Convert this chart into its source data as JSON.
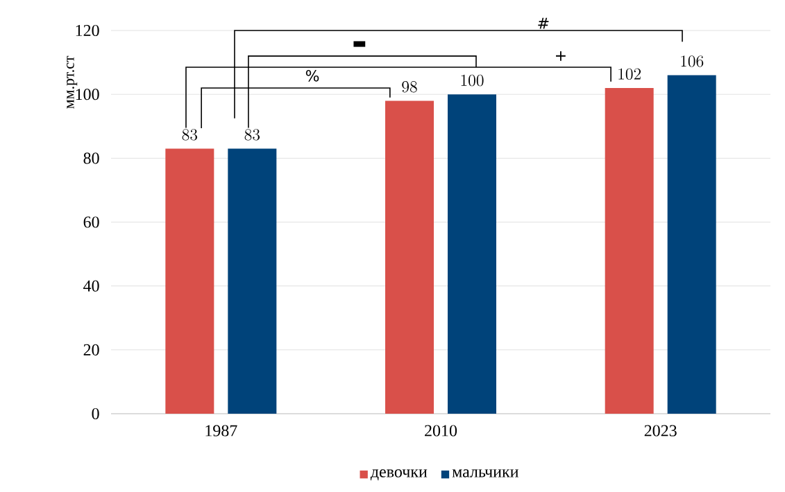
{
  "chart_data": {
    "type": "bar",
    "ylabel": "мм.рт.ст",
    "categories": [
      "1987",
      "2010",
      "2023"
    ],
    "series": [
      {
        "name": "девочки",
        "color": "#d9504a",
        "values": [
          83,
          98,
          102
        ]
      },
      {
        "name": "мальчики",
        "color": "#00437a",
        "values": [
          83,
          100,
          106
        ]
      }
    ],
    "ylim": [
      0,
      120
    ],
    "yticks": [
      0,
      20,
      40,
      60,
      80,
      100,
      120
    ],
    "grid": "y",
    "legend": "bottom",
    "data_labels": true,
    "annotations": [
      "#",
      "▬",
      "+",
      "%"
    ]
  }
}
